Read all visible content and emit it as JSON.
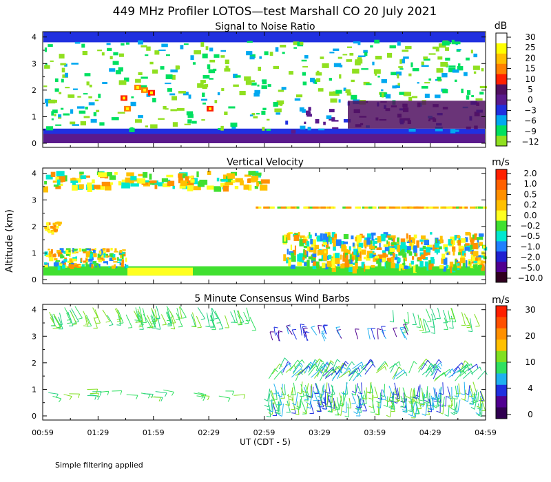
{
  "title": "449 MHz Profiler LOTOS—test Marshall CO 20 July 2021",
  "ylabel": "Altitude (km)",
  "xlabel": "UT  (CDT - 5)",
  "footnote": "Simple filtering applied",
  "chart_data": [
    {
      "type": "heatmap",
      "title": "Signal to Noise Ratio",
      "unit": "dB",
      "ylim": [
        0,
        4.2
      ],
      "yticks": [
        "0",
        "1",
        "2",
        "3",
        "4"
      ],
      "x_tick_labels": [
        "00:59",
        "01:29",
        "01:59",
        "02:29",
        "02:59",
        "03:29",
        "03:59",
        "04:29",
        "04:59"
      ],
      "colorbar": {
        "labels": [
          "30",
          "25",
          "20",
          "15",
          "10",
          "5",
          "0",
          "−3",
          "−6",
          "−9",
          "−12"
        ],
        "colors": [
          "#ffffff",
          "#ffff00",
          "#ffc000",
          "#ff8000",
          "#ff2000",
          "#501060",
          "#5a1a8c",
          "#2030e0",
          "#00a8f0",
          "#00e060",
          "#90e020"
        ]
      }
    },
    {
      "type": "heatmap",
      "title": "Vertical Velocity",
      "unit": "m/s",
      "ylim": [
        0,
        4.2
      ],
      "yticks": [
        "0",
        "1",
        "2",
        "3",
        "4"
      ],
      "colorbar": {
        "labels": [
          "2.0",
          "1.0",
          "0.5",
          "0.2",
          "0.0",
          "−0.2",
          "−0.5",
          "−1.0",
          "−2.0",
          "−5.0",
          "−10.0"
        ],
        "colors": [
          "#ff2000",
          "#ff6000",
          "#ff9000",
          "#ffc000",
          "#ffff20",
          "#40e030",
          "#00e8d0",
          "#2080ff",
          "#2020d0",
          "#500090",
          "#300020"
        ]
      }
    },
    {
      "type": "scatter",
      "title": "5 Minute Consensus Wind Barbs",
      "unit": "m/s",
      "ylim": [
        0,
        4.2
      ],
      "yticks": [
        "0",
        "1",
        "2",
        "3",
        "4"
      ],
      "colorbar": {
        "labels": [
          "30",
          "20",
          "10",
          "4",
          "0"
        ],
        "colors": [
          "#ff2000",
          "#ff5000",
          "#ff9000",
          "#ffc000",
          "#80e020",
          "#30e060",
          "#20b0f0",
          "#2030e0",
          "#500090",
          "#300050"
        ]
      }
    }
  ]
}
